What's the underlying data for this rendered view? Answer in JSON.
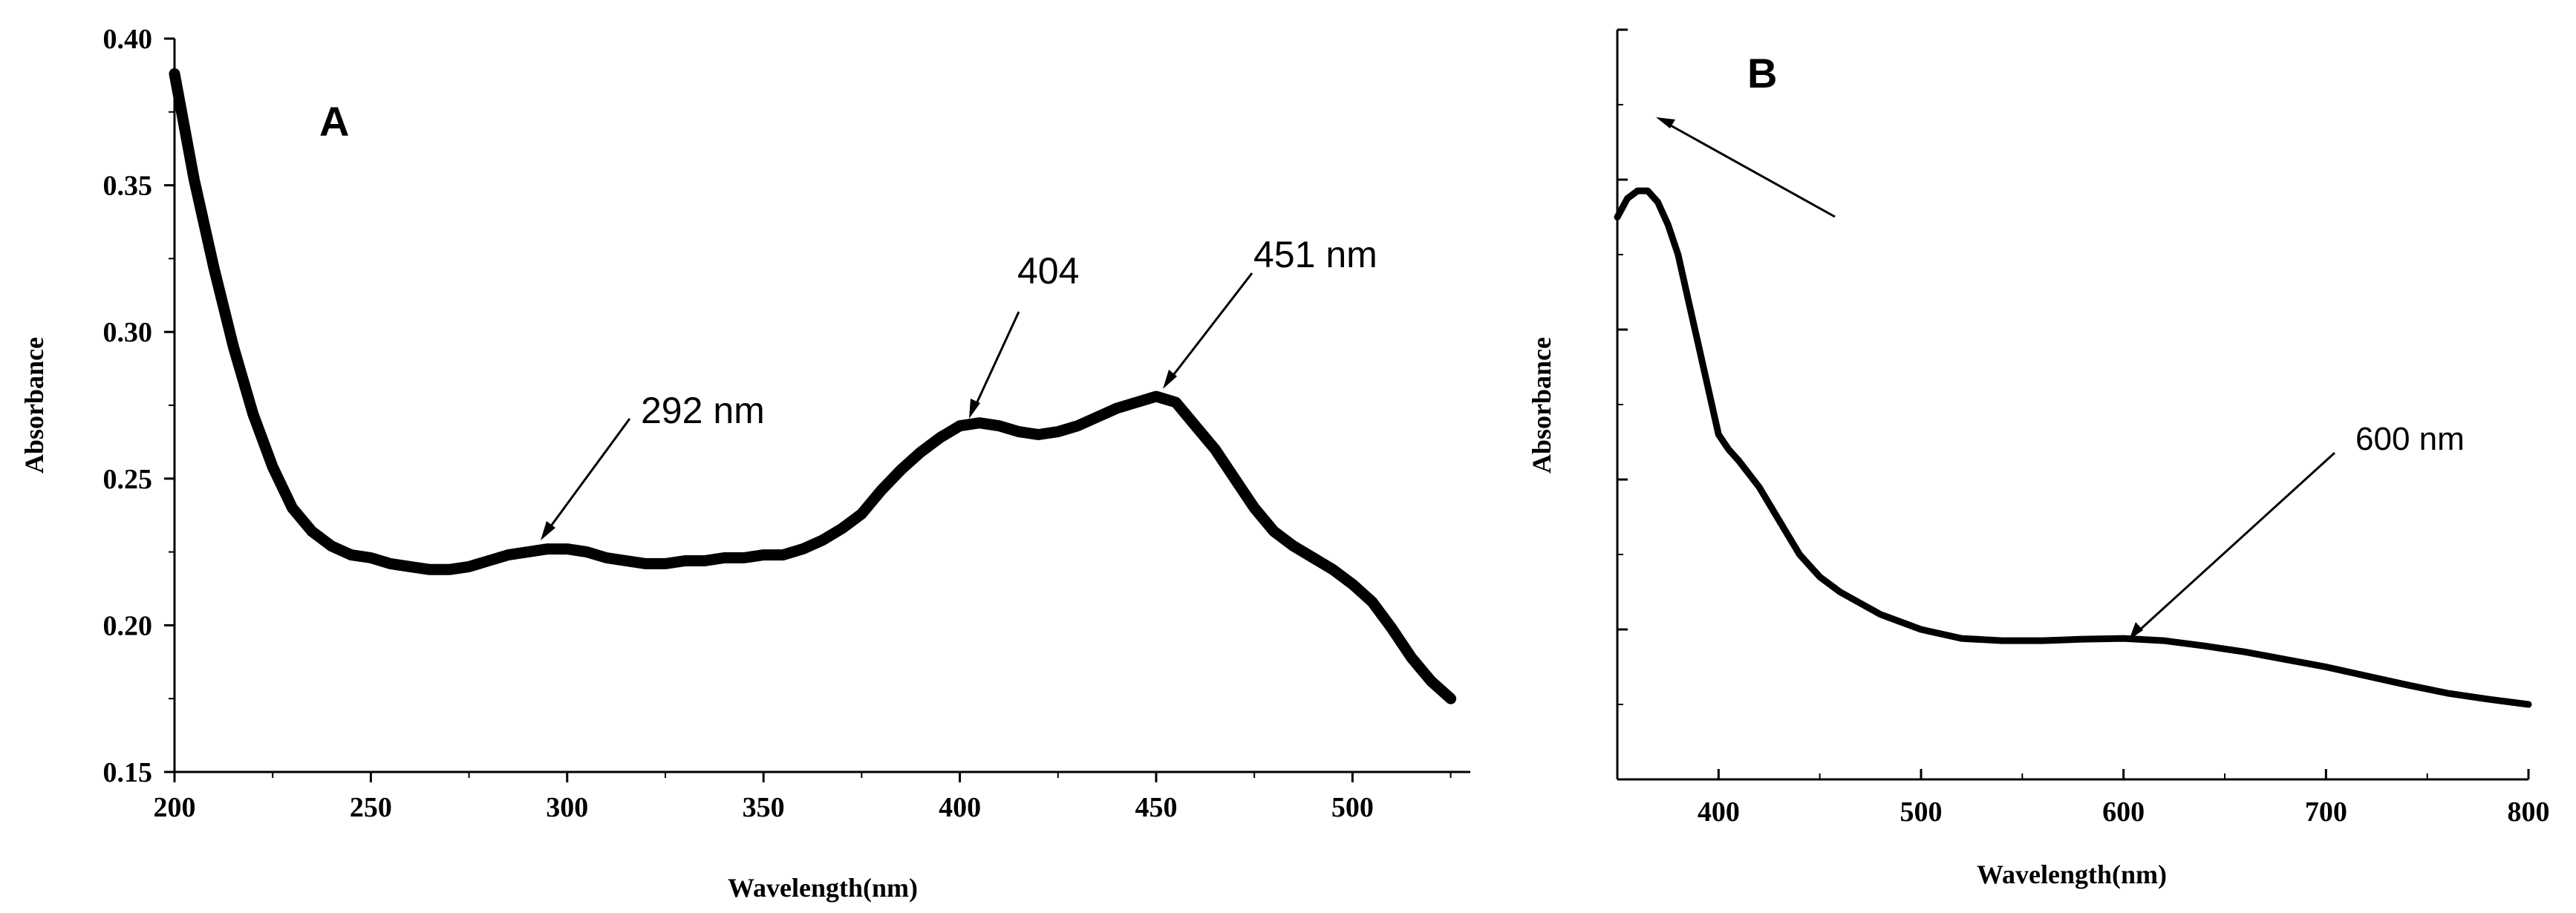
{
  "chart_data": [
    {
      "type": "line",
      "panel_label": "A",
      "xlabel": "Wavelength(nm)",
      "ylabel": "Absorbance",
      "xlim": [
        200,
        530
      ],
      "ylim": [
        0.15,
        0.4
      ],
      "xticks": [
        200,
        250,
        300,
        350,
        400,
        450,
        500
      ],
      "xtick_labels": [
        "200",
        "250",
        "300",
        "350",
        "400",
        "450",
        "500"
      ],
      "yticks": [
        0.15,
        0.2,
        0.25,
        0.3,
        0.35,
        0.4
      ],
      "ytick_labels": [
        "0.15",
        "0.20",
        "0.25",
        "0.30",
        "0.35",
        "0.40"
      ],
      "series": [
        {
          "name": "A",
          "x": [
            200,
            205,
            210,
            215,
            220,
            225,
            230,
            235,
            240,
            245,
            250,
            255,
            260,
            265,
            270,
            275,
            280,
            285,
            290,
            295,
            300,
            305,
            310,
            315,
            320,
            325,
            330,
            335,
            340,
            345,
            350,
            355,
            360,
            365,
            370,
            375,
            380,
            385,
            390,
            395,
            400,
            405,
            410,
            415,
            420,
            425,
            430,
            435,
            440,
            445,
            450,
            455,
            460,
            465,
            470,
            475,
            480,
            485,
            490,
            495,
            500,
            505,
            510,
            515,
            520,
            525
          ],
          "y": [
            0.388,
            0.352,
            0.322,
            0.295,
            0.272,
            0.254,
            0.24,
            0.232,
            0.227,
            0.224,
            0.223,
            0.221,
            0.22,
            0.219,
            0.219,
            0.22,
            0.222,
            0.224,
            0.225,
            0.226,
            0.226,
            0.225,
            0.223,
            0.222,
            0.221,
            0.221,
            0.222,
            0.222,
            0.223,
            0.223,
            0.224,
            0.224,
            0.226,
            0.229,
            0.233,
            0.238,
            0.246,
            0.253,
            0.259,
            0.264,
            0.268,
            0.269,
            0.268,
            0.266,
            0.265,
            0.266,
            0.268,
            0.271,
            0.274,
            0.276,
            0.278,
            0.276,
            0.268,
            0.26,
            0.25,
            0.24,
            0.232,
            0.227,
            0.223,
            0.219,
            0.214,
            0.208,
            0.199,
            0.189,
            0.181,
            0.175
          ]
        }
      ],
      "annotations": [
        {
          "text": "292 nm",
          "x": 292,
          "y": 0.226
        },
        {
          "text": "404",
          "x": 404,
          "y": 0.269
        },
        {
          "text": "451 nm",
          "x": 451,
          "y": 0.278
        }
      ]
    },
    {
      "type": "line",
      "panel_label": "B",
      "xlabel": "Wavelength(nm)",
      "ylabel": "Absorbance",
      "xlim": [
        350,
        800
      ],
      "ylim": [
        0.0,
        1.0
      ],
      "xticks": [
        400,
        500,
        600,
        700,
        800
      ],
      "xtick_labels": [
        "400",
        "500",
        "600",
        "700",
        "800"
      ],
      "yticks": [
        0.0,
        0.2,
        0.4,
        0.6,
        0.8,
        1.0
      ],
      "ytick_labels": [],
      "series": [
        {
          "name": "B",
          "x": [
            350,
            355,
            360,
            365,
            370,
            375,
            380,
            385,
            390,
            395,
            400,
            405,
            410,
            420,
            430,
            440,
            450,
            460,
            480,
            500,
            520,
            540,
            560,
            580,
            600,
            620,
            640,
            660,
            680,
            700,
            720,
            740,
            760,
            780,
            800
          ],
          "y": [
            0.75,
            0.775,
            0.785,
            0.785,
            0.77,
            0.74,
            0.7,
            0.64,
            0.58,
            0.52,
            0.46,
            0.44,
            0.425,
            0.39,
            0.345,
            0.3,
            0.27,
            0.25,
            0.22,
            0.2,
            0.188,
            0.185,
            0.185,
            0.187,
            0.188,
            0.185,
            0.178,
            0.17,
            0.16,
            0.15,
            0.138,
            0.126,
            0.115,
            0.107,
            0.1
          ]
        }
      ],
      "annotations": [
        {
          "text": "600 nm",
          "x": 600,
          "y": 0.188
        }
      ]
    }
  ]
}
